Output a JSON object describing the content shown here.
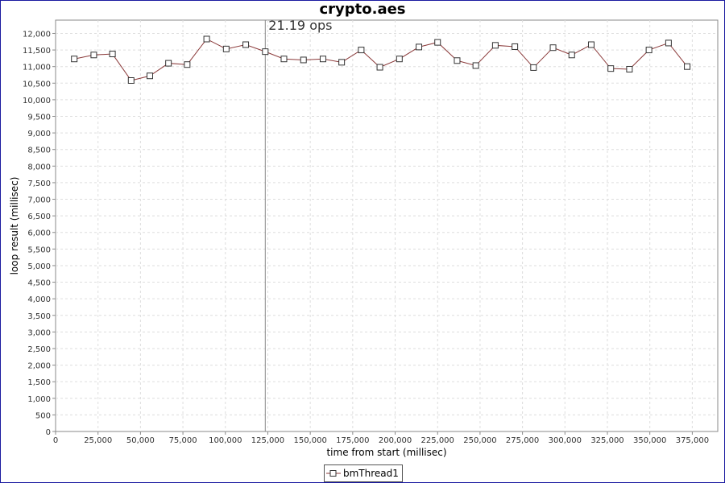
{
  "chart_data": {
    "type": "line",
    "title": "crypto.aes",
    "xlabel": "time from start (millisec)",
    "ylabel": "loop result (millisec)",
    "xlim": [
      0,
      390000
    ],
    "ylim": [
      0,
      12400
    ],
    "x_ticks": [
      0,
      25000,
      50000,
      75000,
      100000,
      125000,
      150000,
      175000,
      200000,
      225000,
      250000,
      275000,
      300000,
      325000,
      350000,
      375000
    ],
    "y_ticks": [
      0,
      500,
      1000,
      1500,
      2000,
      2500,
      3000,
      3500,
      4000,
      4500,
      5000,
      5500,
      6000,
      6500,
      7000,
      7500,
      8000,
      8500,
      9000,
      9500,
      10000,
      10500,
      11000,
      11500,
      12000
    ],
    "grid": true,
    "legend_position": "bottom-center",
    "marker": {
      "x": 123500,
      "label": "21.19 ops"
    },
    "series": [
      {
        "name": "bmThread1",
        "color": "#8b3a3a",
        "x": [
          11000,
          22500,
          33500,
          44500,
          55500,
          66500,
          77500,
          89000,
          100500,
          112000,
          123500,
          134500,
          146000,
          157500,
          168500,
          180000,
          191000,
          202500,
          214000,
          225000,
          236500,
          247500,
          259000,
          270500,
          281500,
          293000,
          304000,
          315500,
          327000,
          338000,
          349500,
          361000,
          372000
        ],
        "y": [
          11230,
          11350,
          11380,
          10580,
          10720,
          11100,
          11060,
          11830,
          11530,
          11660,
          11450,
          11230,
          11200,
          11230,
          11130,
          11500,
          10980,
          11230,
          11590,
          11730,
          11180,
          11030,
          11640,
          11600,
          10970,
          11570,
          11350,
          11660,
          10940,
          10920,
          11500,
          11710,
          11000
        ]
      }
    ]
  }
}
